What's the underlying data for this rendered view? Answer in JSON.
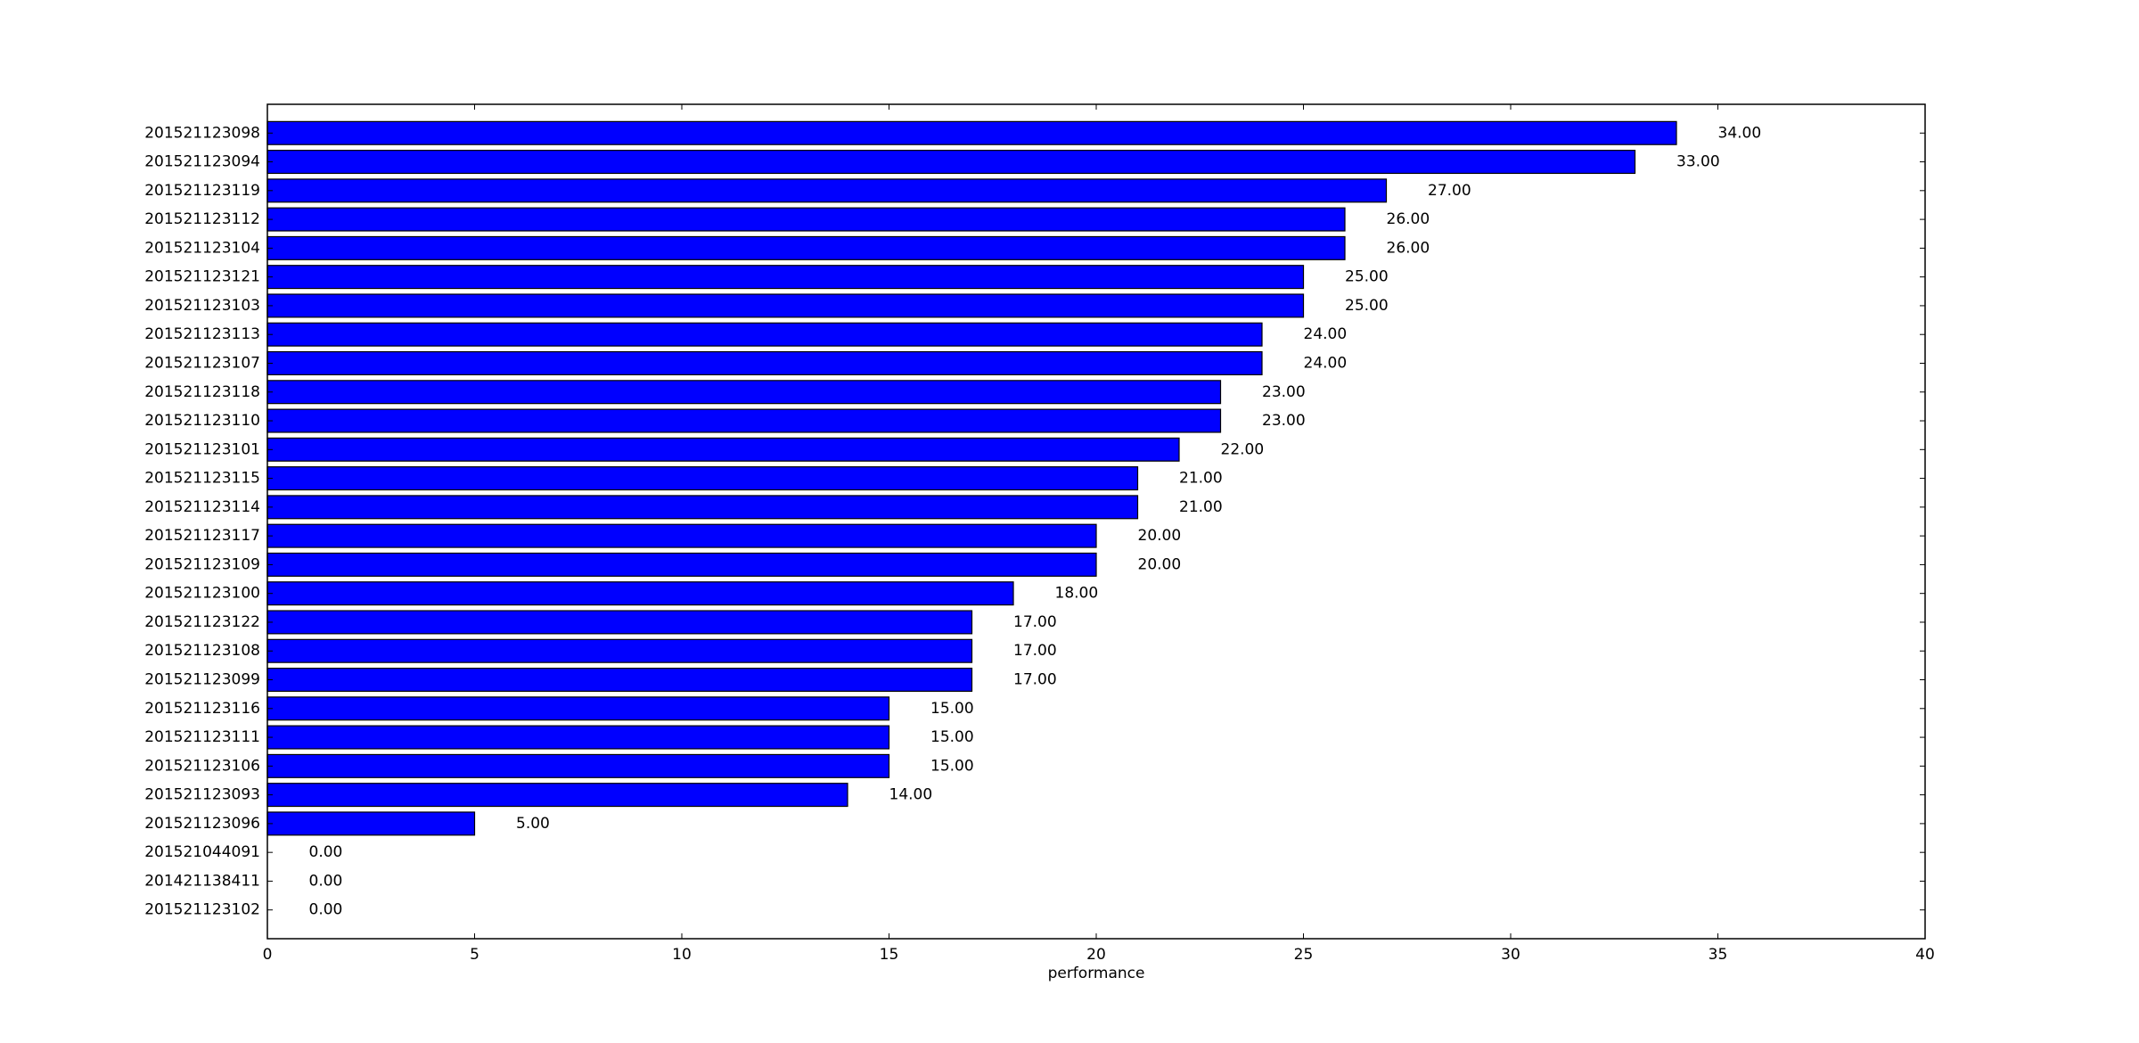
{
  "chart_data": {
    "type": "bar",
    "orientation": "horizontal",
    "categories": [
      "201521123098",
      "201521123094",
      "201521123119",
      "201521123112",
      "201521123104",
      "201521123121",
      "201521123103",
      "201521123113",
      "201521123107",
      "201521123118",
      "201521123110",
      "201521123101",
      "201521123115",
      "201521123114",
      "201521123117",
      "201521123109",
      "201521123100",
      "201521123122",
      "201521123108",
      "201521123099",
      "201521123116",
      "201521123111",
      "201521123106",
      "201521123093",
      "201521123096",
      "201521044091",
      "201421138411",
      "201521123102"
    ],
    "values": [
      34,
      33,
      27,
      26,
      26,
      25,
      25,
      24,
      24,
      23,
      23,
      22,
      21,
      21,
      20,
      20,
      18,
      17,
      17,
      17,
      15,
      15,
      15,
      14,
      5,
      0,
      0,
      0
    ],
    "value_labels": [
      "34.00",
      "33.00",
      "27.00",
      "26.00",
      "26.00",
      "25.00",
      "25.00",
      "24.00",
      "24.00",
      "23.00",
      "23.00",
      "22.00",
      "21.00",
      "21.00",
      "20.00",
      "20.00",
      "18.00",
      "17.00",
      "17.00",
      "17.00",
      "15.00",
      "15.00",
      "15.00",
      "14.00",
      "5.00",
      "0.00",
      "0.00",
      "0.00"
    ],
    "title": "",
    "xlabel": "performance",
    "ylabel": "",
    "xlim": [
      0,
      40
    ],
    "xticks": [
      0,
      5,
      10,
      15,
      20,
      25,
      30,
      35,
      40
    ],
    "grid": false,
    "bar_color": "#0000ff",
    "edge_color": "#000000"
  }
}
